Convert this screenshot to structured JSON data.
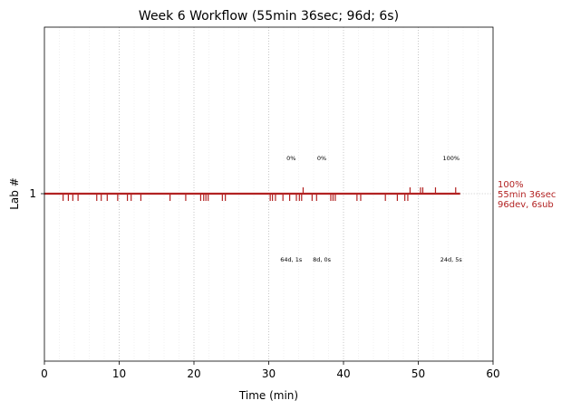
{
  "chart_data": {
    "type": "line",
    "title": "Week 6 Workflow (55min 36sec; 96d; 6s)",
    "xlabel": "Time (min)",
    "ylabel": "Lab #",
    "xlim": [
      0,
      60
    ],
    "x_ticks": [
      "0",
      "10",
      "20",
      "30",
      "40",
      "50",
      "60"
    ],
    "y_ticks": [
      "1"
    ],
    "grid": "dotted vertical lines",
    "colors": {
      "line": "#b22222",
      "grid": "#b0b0b0",
      "minor_grid": "#e6e6e6"
    },
    "series": [
      {
        "y": 1,
        "start": 0,
        "end": 55.6,
        "color": "#b22222"
      }
    ],
    "down_ticks": [
      2.5,
      3.2,
      3.8,
      4.5,
      7.0,
      7.6,
      8.4,
      9.8,
      11.1,
      11.6,
      12.9,
      16.8,
      18.9,
      20.9,
      21.3,
      21.6,
      21.9,
      23.8,
      24.2,
      30.2,
      30.5,
      30.9,
      31.9,
      32.8,
      33.7,
      34.1,
      34.4,
      35.8,
      36.4,
      38.3,
      38.6,
      38.9,
      41.8,
      42.3,
      45.6,
      47.2,
      48.2,
      48.6
    ],
    "up_ticks": [
      34.6,
      48.9,
      50.3,
      50.6,
      52.3,
      55.0
    ],
    "sessions": [
      {
        "center": 33.0,
        "percent": "0%",
        "summary": "64d, 1s"
      },
      {
        "center": 37.1,
        "percent": "0%",
        "summary": "8d, 0s"
      },
      {
        "center": 54.4,
        "percent": "100%",
        "summary": "24d, 5s"
      }
    ],
    "end_annotation": [
      "100%",
      "55min 36sec",
      "96dev, 6sub"
    ]
  }
}
